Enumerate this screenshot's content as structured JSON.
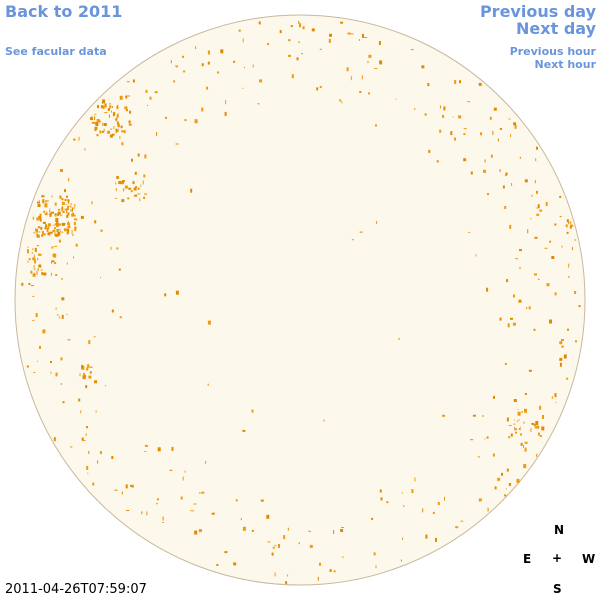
{
  "header": {
    "back_link": "Back to 2011",
    "facular_link": "See facular data"
  },
  "navigation": {
    "previous_day": "Previous day",
    "next_day": "Next day",
    "previous_hour": "Previous hour",
    "next_hour": "Next hour"
  },
  "timestamp": "2011-04-26T07:59:07",
  "compass": {
    "north": "N",
    "east": "E",
    "center": "+",
    "west": "W",
    "south": "S"
  }
}
